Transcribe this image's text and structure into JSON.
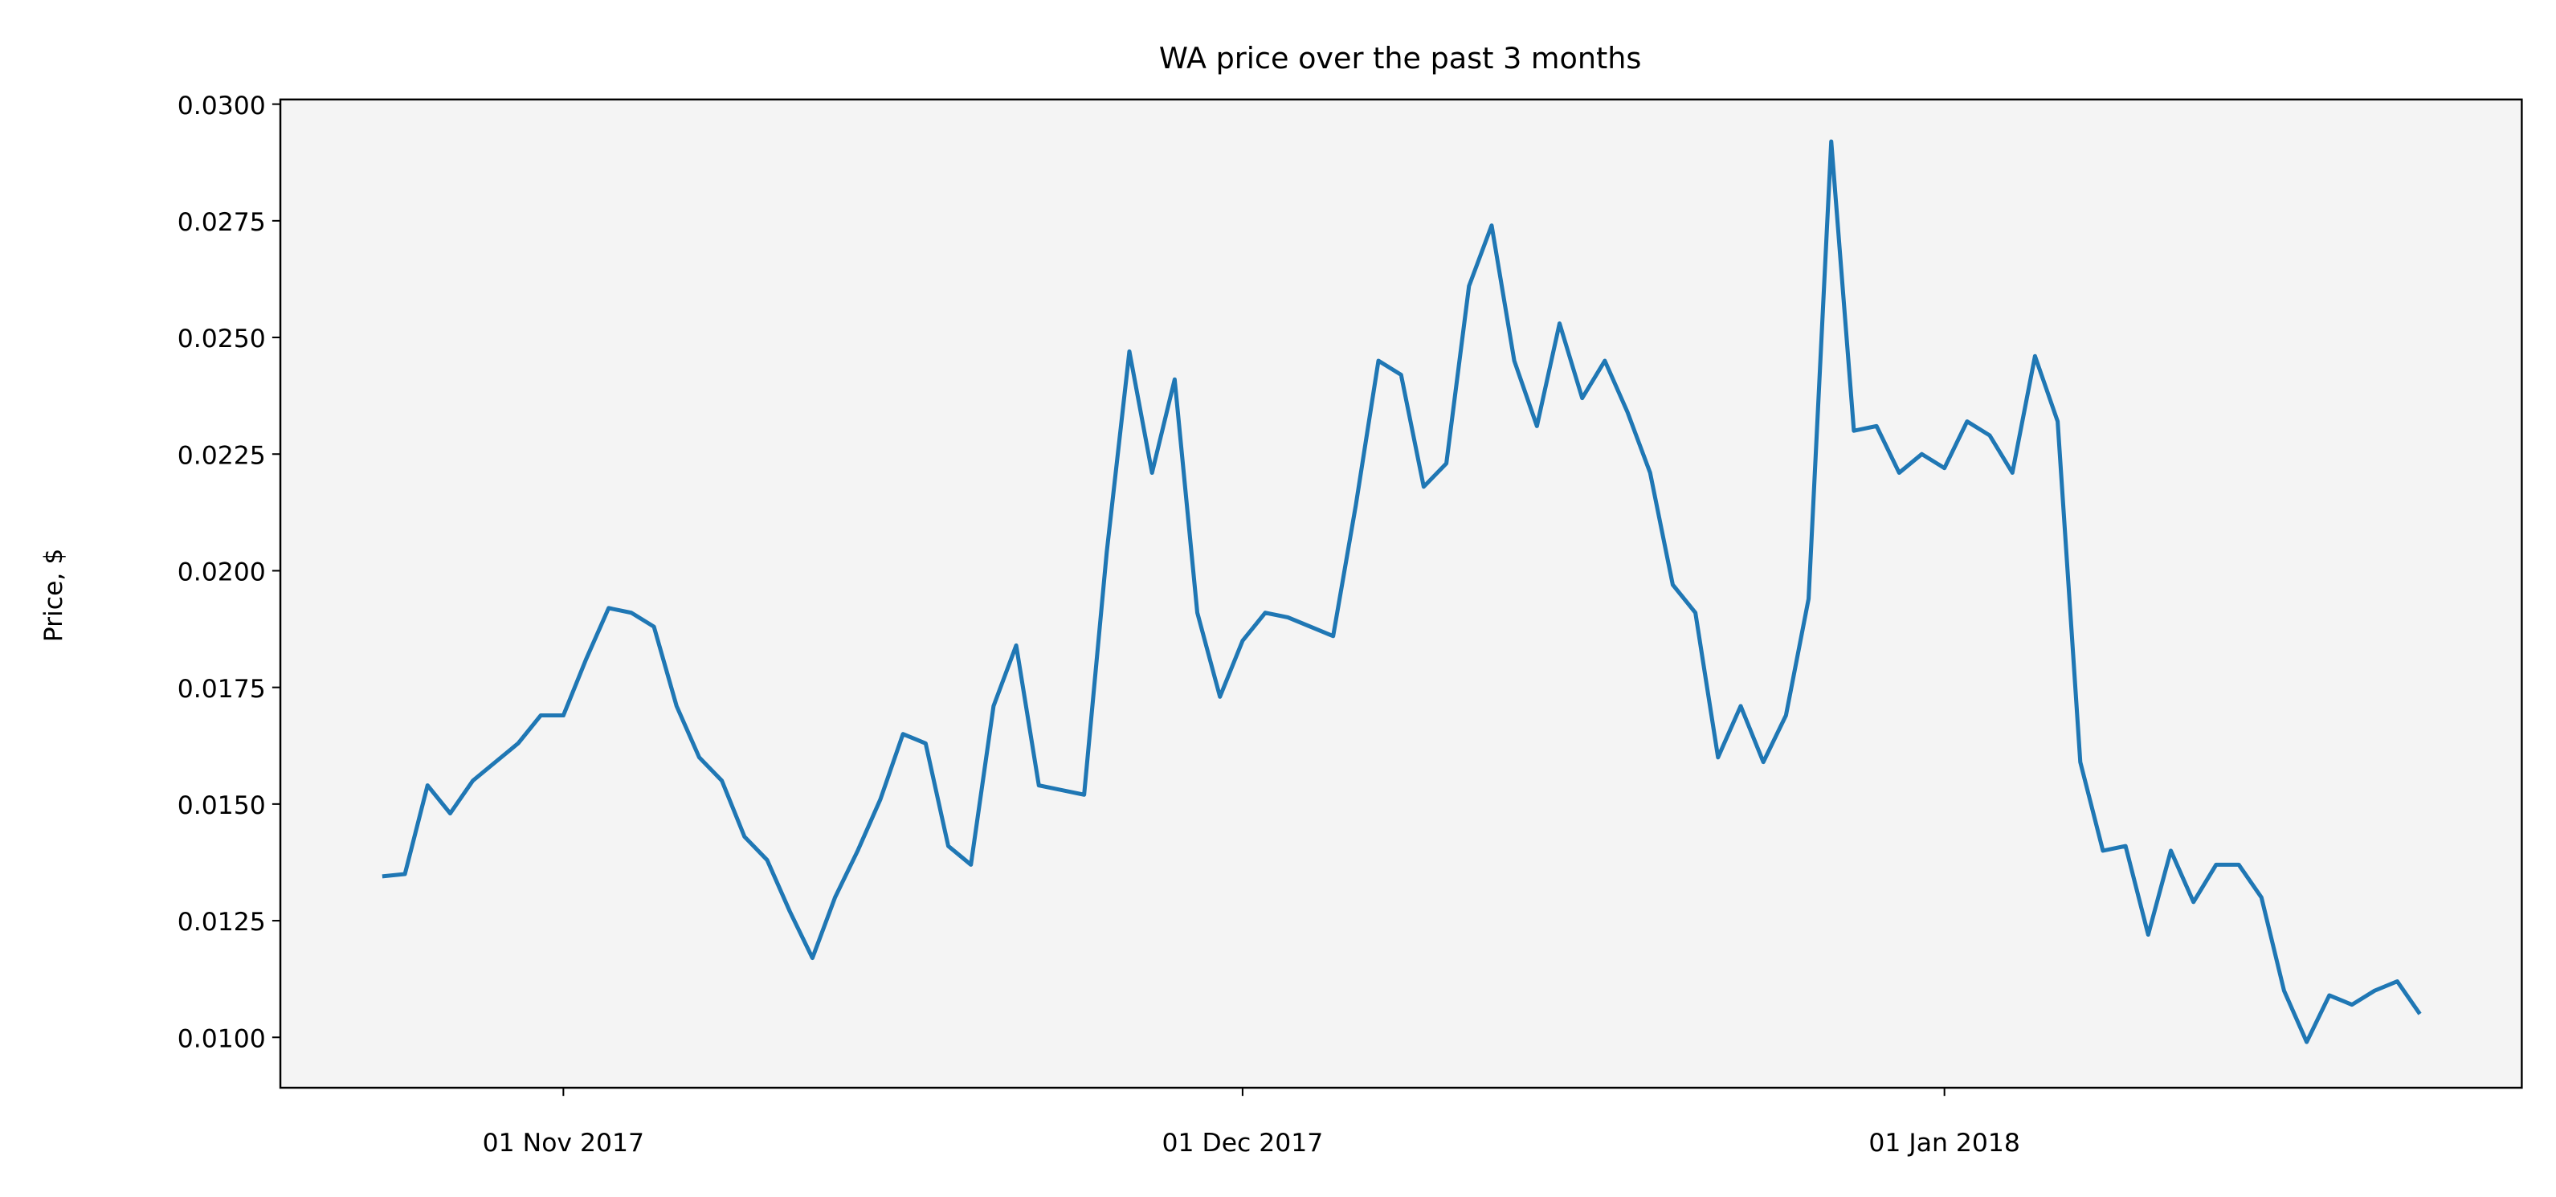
{
  "chart_data": {
    "type": "line",
    "title": "WA price over the past 3 months",
    "ylabel": "Price, $",
    "color": "#1f77b4",
    "background": "#f4f4f4",
    "x": [
      "2017-10-24",
      "2017-10-25",
      "2017-10-26",
      "2017-10-27",
      "2017-10-28",
      "2017-10-29",
      "2017-10-30",
      "2017-10-31",
      "2017-11-01",
      "2017-11-02",
      "2017-11-03",
      "2017-11-04",
      "2017-11-05",
      "2017-11-06",
      "2017-11-07",
      "2017-11-08",
      "2017-11-09",
      "2017-11-10",
      "2017-11-11",
      "2017-11-12",
      "2017-11-13",
      "2017-11-14",
      "2017-11-15",
      "2017-11-16",
      "2017-11-17",
      "2017-11-18",
      "2017-11-19",
      "2017-11-20",
      "2017-11-21",
      "2017-11-22",
      "2017-11-23",
      "2017-11-24",
      "2017-11-25",
      "2017-11-26",
      "2017-11-27",
      "2017-11-28",
      "2017-11-29",
      "2017-11-30",
      "2017-12-01",
      "2017-12-02",
      "2017-12-03",
      "2017-12-04",
      "2017-12-05",
      "2017-12-06",
      "2017-12-07",
      "2017-12-08",
      "2017-12-09",
      "2017-12-10",
      "2017-12-11",
      "2017-12-12",
      "2017-12-13",
      "2017-12-14",
      "2017-12-15",
      "2017-12-16",
      "2017-12-17",
      "2017-12-18",
      "2017-12-19",
      "2017-12-20",
      "2017-12-21",
      "2017-12-22",
      "2017-12-23",
      "2017-12-24",
      "2017-12-25",
      "2017-12-26",
      "2017-12-27",
      "2017-12-28",
      "2017-12-29",
      "2017-12-30",
      "2017-12-31",
      "2018-01-01",
      "2018-01-02",
      "2018-01-03",
      "2018-01-04",
      "2018-01-05",
      "2018-01-06",
      "2018-01-07",
      "2018-01-08",
      "2018-01-09",
      "2018-01-10",
      "2018-01-11",
      "2018-01-12",
      "2018-01-13",
      "2018-01-14",
      "2018-01-15",
      "2018-01-16",
      "2018-01-17",
      "2018-01-18",
      "2018-01-19",
      "2018-01-20",
      "2018-01-21",
      "2018-01-22"
    ],
    "values": [
      0.01345,
      0.0135,
      0.0154,
      0.0148,
      0.0155,
      0.0159,
      0.0163,
      0.0169,
      0.0169,
      0.0181,
      0.0192,
      0.0191,
      0.0188,
      0.0171,
      0.016,
      0.0155,
      0.0143,
      0.0138,
      0.0127,
      0.0117,
      0.013,
      0.014,
      0.0151,
      0.0165,
      0.0163,
      0.0141,
      0.0137,
      0.0171,
      0.0184,
      0.0154,
      0.0153,
      0.0152,
      0.0204,
      0.0247,
      0.0221,
      0.0241,
      0.0191,
      0.0173,
      0.0185,
      0.0191,
      0.019,
      0.0188,
      0.0186,
      0.0214,
      0.0245,
      0.0242,
      0.0218,
      0.0223,
      0.0261,
      0.0274,
      0.0245,
      0.0231,
      0.0253,
      0.0237,
      0.0245,
      0.0234,
      0.0221,
      0.0197,
      0.0191,
      0.016,
      0.0171,
      0.0159,
      0.0169,
      0.0194,
      0.0292,
      0.023,
      0.0231,
      0.0221,
      0.0225,
      0.0222,
      0.0232,
      0.0229,
      0.0221,
      0.0246,
      0.0232,
      0.0159,
      0.014,
      0.0141,
      0.0122,
      0.014,
      0.0129,
      0.0137,
      0.0137,
      0.013,
      0.011,
      0.0099,
      0.0109,
      0.0107,
      0.011,
      0.0112,
      0.0105
    ],
    "xlim": [
      "2017-10-19T12:00",
      "2018-01-26T12:00"
    ],
    "xticks": [
      {
        "value": "2017-11-01",
        "label": "01 Nov 2017"
      },
      {
        "value": "2017-12-01",
        "label": "01 Dec 2017"
      },
      {
        "value": "2018-01-01",
        "label": "01 Jan 2018"
      }
    ],
    "ylim": [
      0.00892,
      0.0301
    ],
    "yticks": [
      {
        "value": 0.01,
        "label": "0.0100"
      },
      {
        "value": 0.0125,
        "label": "0.0125"
      },
      {
        "value": 0.015,
        "label": "0.0150"
      },
      {
        "value": 0.0175,
        "label": "0.0175"
      },
      {
        "value": 0.02,
        "label": "0.0200"
      },
      {
        "value": 0.0225,
        "label": "0.0225"
      },
      {
        "value": 0.025,
        "label": "0.0250"
      },
      {
        "value": 0.0275,
        "label": "0.0275"
      },
      {
        "value": 0.03,
        "label": "0.0300"
      }
    ]
  }
}
